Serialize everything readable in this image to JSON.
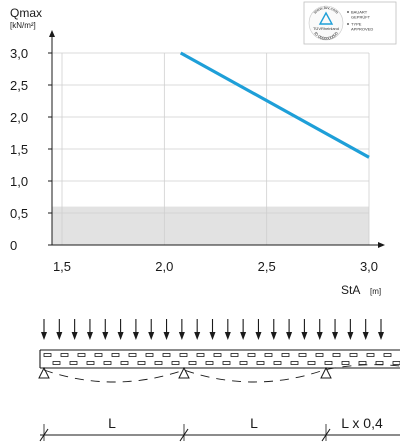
{
  "chart_data": {
    "type": "line",
    "ylabel": "Qmax",
    "ylabel_unit": "[kN/m²]",
    "xlabel": "StA",
    "xlabel_unit": "[m]",
    "xlim": [
      1.5,
      3.0
    ],
    "ylim": [
      0,
      3.0
    ],
    "x_ticks": [
      "1,5",
      "2,0",
      "2,5",
      "3,0"
    ],
    "x_tick_values": [
      1.5,
      2.0,
      2.5,
      3.0
    ],
    "y_ticks": [
      "0",
      "0,5",
      "1,0",
      "1,5",
      "2,0",
      "2,5",
      "3,0"
    ],
    "y_tick_values": [
      0,
      0.5,
      1.0,
      1.5,
      2.0,
      2.5,
      3.0
    ],
    "grid": true,
    "shaded_band": [
      0,
      0.6
    ],
    "series": [
      {
        "color": "#1e9fd8",
        "x": [
          2.08,
          3.0
        ],
        "y": [
          3.0,
          1.37
        ]
      }
    ]
  },
  "certificate": {
    "arc_text": "www.tuv.com",
    "id_text": "ID 0000000000",
    "brand": "TÜVRheinland",
    "items": [
      "BAUART",
      "GEPRÜFT",
      "TYPE",
      "APPROVED"
    ]
  },
  "beam_diagram": {
    "load_arrow_count": 23,
    "spans": [
      "L",
      "L",
      "L x 0,4"
    ]
  },
  "colors": {
    "series": "#1e9fd8",
    "band": "#e2e2e2",
    "grid": "#cfcfcf",
    "axis": "#1a1a1a"
  }
}
